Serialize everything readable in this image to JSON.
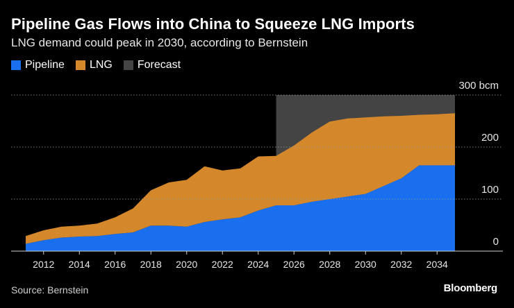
{
  "title": "Pipeline Gas Flows into China to Squeeze LNG Imports",
  "subtitle": "LNG demand could peak in 2030, according to Bernstein",
  "legend": {
    "pipeline": {
      "label": "Pipeline",
      "color": "#1a6fee"
    },
    "lng": {
      "label": "LNG",
      "color": "#d4882b"
    },
    "forecast": {
      "label": "Forecast",
      "color": "#444444"
    }
  },
  "source": "Source: Bernstein",
  "logo": "Bloomberg",
  "chart_data": {
    "type": "area",
    "stacked": true,
    "x": [
      2011,
      2012,
      2013,
      2014,
      2015,
      2016,
      2017,
      2018,
      2019,
      2020,
      2021,
      2022,
      2023,
      2024,
      2025,
      2026,
      2027,
      2028,
      2029,
      2030,
      2031,
      2032,
      2033,
      2034,
      2035
    ],
    "series": [
      {
        "name": "Pipeline",
        "color": "#1a6fee",
        "values": [
          14,
          21,
          26,
          28,
          29,
          33,
          36,
          49,
          49,
          47,
          56,
          61,
          65,
          78,
          88,
          88,
          95,
          100,
          105,
          110,
          125,
          140,
          165,
          165,
          165
        ]
      },
      {
        "name": "LNG",
        "color": "#d4882b",
        "values": [
          15,
          19,
          21,
          21,
          24,
          32,
          46,
          68,
          83,
          90,
          107,
          94,
          94,
          104,
          95,
          115,
          133,
          149,
          150,
          147,
          134,
          120,
          97,
          98,
          100
        ]
      }
    ],
    "forecast_range": [
      2025,
      2035
    ],
    "xticks": [
      2012,
      2014,
      2016,
      2018,
      2020,
      2022,
      2024,
      2026,
      2028,
      2030,
      2032,
      2034
    ],
    "xtick_labels": [
      "2012",
      "2014",
      "2016",
      "2018",
      "2020",
      "2022",
      "2024",
      "2026",
      "2028",
      "2030",
      "2032",
      "2034"
    ],
    "yticks": [
      0,
      100,
      200,
      300
    ],
    "ytick_labels": [
      "0",
      "100",
      "200",
      "300 bcm"
    ],
    "ylim": [
      0,
      300
    ],
    "xlim": [
      2011,
      2035
    ],
    "ylabel": "bcm",
    "grid": true,
    "legend_position": "top-left"
  }
}
